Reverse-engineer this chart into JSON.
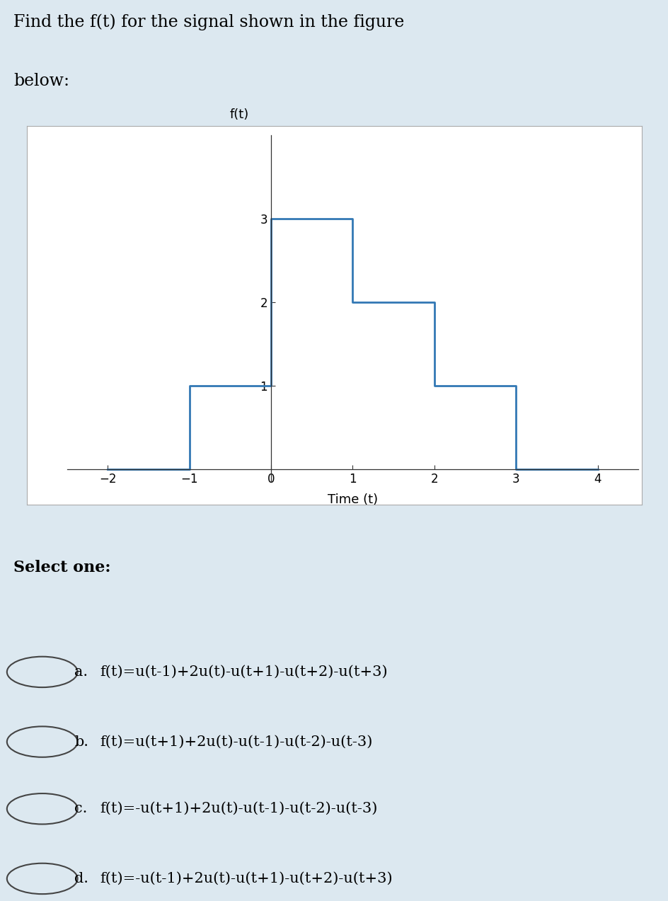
{
  "title_line1": "Find the f(t) for the signal shown in the figure",
  "title_line2": "below:",
  "signal_t": [
    -2,
    -1,
    -1,
    0,
    0,
    1,
    1,
    2,
    2,
    3,
    3,
    4
  ],
  "signal_f": [
    0,
    0,
    1,
    1,
    3,
    3,
    2,
    2,
    1,
    1,
    0,
    0
  ],
  "xlabel": "Time (t)",
  "ylabel": "f(t)",
  "xlim": [
    -2.5,
    4.5
  ],
  "ylim": [
    -0.15,
    4.0
  ],
  "xticks": [
    -2,
    -1,
    0,
    1,
    2,
    3,
    4
  ],
  "yticks": [
    1,
    2,
    3
  ],
  "line_color": "#3278b4",
  "line_width": 2.0,
  "plot_bg": "#ffffff",
  "outer_bg": "#dce8f0",
  "select_one_text": "Select one:",
  "options": [
    [
      "a.",
      "f(t)=u(t-1)+2u(t)-u(t+1)-u(t+2)-u(t+3)"
    ],
    [
      "b.",
      "f(t)=u(t+1)+2u(t)-u(t-1)-u(t-2)-u(t-3)"
    ],
    [
      "c.",
      "f(t)=-u(t+1)+2u(t)-u(t-1)-u(t-2)-u(t-3)"
    ],
    [
      "d.",
      "f(t)=-u(t-1)+2u(t)-u(t+1)-u(t+2)-u(t+3)"
    ]
  ]
}
